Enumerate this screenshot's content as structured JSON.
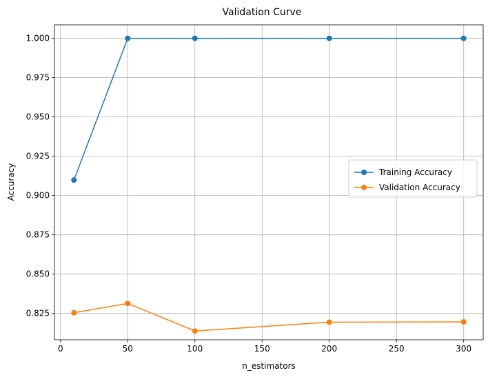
{
  "chart_data": {
    "type": "line",
    "title": "Validation Curve",
    "xlabel": "n_estimators",
    "ylabel": "Accuracy",
    "x": [
      10,
      50,
      100,
      200,
      300
    ],
    "xlim": [
      -4.5,
      314.5
    ],
    "ylim": [
      0.8082,
      1.0086
    ],
    "xticks": [
      0,
      50,
      100,
      150,
      200,
      250,
      300
    ],
    "xtick_labels": [
      "0",
      "50",
      "100",
      "150",
      "200",
      "250",
      "300"
    ],
    "yticks": [
      0.825,
      0.85,
      0.875,
      0.9,
      0.925,
      0.95,
      0.975,
      1.0
    ],
    "ytick_labels": [
      "0.825",
      "0.850",
      "0.875",
      "0.900",
      "0.925",
      "0.950",
      "0.975",
      "1.000"
    ],
    "grid": true,
    "legend_position": "center-right",
    "series": [
      {
        "name": "Training Accuracy",
        "color": "#1f77b4",
        "marker": "circle",
        "values": [
          0.9098,
          1.0,
          1.0,
          1.0,
          1.0
        ]
      },
      {
        "name": "Validation Accuracy",
        "color": "#ff7f0e",
        "marker": "circle",
        "values": [
          0.8254,
          0.8313,
          0.8138,
          0.8194,
          0.8196
        ]
      }
    ]
  }
}
